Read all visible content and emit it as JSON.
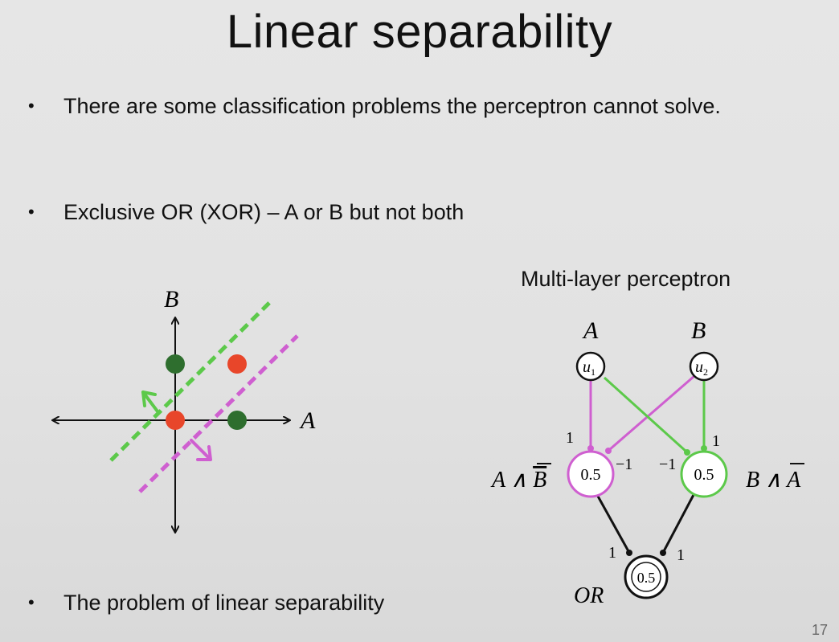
{
  "title": "Linear separability",
  "bullets": [
    "There are some classification problems the perceptron cannot solve.",
    "Exclusive OR  (XOR) – A or B but not both",
    "The problem of linear separability"
  ],
  "bullet_char": "•",
  "xor_plot": {
    "axis_labels": {
      "x": "A",
      "y": "B"
    },
    "points": [
      {
        "x": 0,
        "y": 0,
        "color": "#e8462a"
      },
      {
        "x": 1,
        "y": 1,
        "color": "#e8462a"
      },
      {
        "x": 0,
        "y": 1,
        "color": "#2e6e2e"
      },
      {
        "x": 1,
        "y": 0,
        "color": "#2e6e2e"
      }
    ],
    "line_colors": {
      "green": "#5cc94a",
      "magenta": "#cf5fd0"
    }
  },
  "network": {
    "title": "Multi-layer perceptron",
    "inputs": [
      {
        "top_label": "A",
        "unit": "u",
        "sub": "1"
      },
      {
        "top_label": "B",
        "unit": "u",
        "sub": "2"
      }
    ],
    "hidden": [
      {
        "threshold": "0.5",
        "side_label": "A ∧ ",
        "side_bar": "B",
        "color": "#cf5fd0"
      },
      {
        "threshold": "0.5",
        "side_label": "B ∧ ",
        "side_bar": "A",
        "color": "#5cc94a"
      }
    ],
    "output": {
      "threshold": "0.5",
      "label": "OR"
    },
    "weights": {
      "u1_h1": "1",
      "u2_h1": "−1",
      "u1_h2": "−1",
      "u2_h2": "1",
      "h1_out": "1",
      "h2_out": "1"
    }
  },
  "slide_number": "17"
}
